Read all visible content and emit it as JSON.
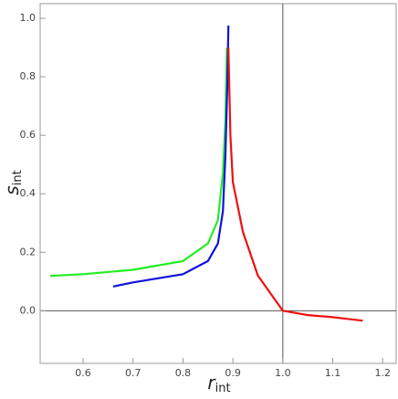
{
  "chart_data": {
    "type": "line",
    "xlabel": {
      "main": "r",
      "sub": "int"
    },
    "ylabel": {
      "main": "s",
      "sub": "int"
    },
    "xlim": [
      0.514,
      1.227
    ],
    "ylim": [
      -0.18,
      1.05
    ],
    "xticks": [
      0.6,
      0.7,
      0.8,
      0.9,
      {
        "value": 1.0,
        "label": "1.0"
      },
      1.1,
      1.2
    ],
    "yticks": [
      {
        "value": 0,
        "label": "0.0"
      },
      0.2,
      0.4,
      0.6,
      0.8,
      {
        "value": 1.0,
        "label": "1.0"
      }
    ],
    "series": [
      {
        "color": "#22ee22",
        "x": [
          0.534,
          0.6,
          0.7,
          0.8,
          0.85,
          0.87,
          0.88,
          0.885,
          0.888
        ],
        "values": [
          0.119,
          0.125,
          0.14,
          0.17,
          0.23,
          0.31,
          0.47,
          0.65,
          0.9
        ]
      },
      {
        "color": "#1111dd",
        "x": [
          0.66,
          0.7,
          0.8,
          0.85,
          0.87,
          0.88,
          0.885,
          0.889,
          0.891
        ],
        "values": [
          0.083,
          0.097,
          0.125,
          0.17,
          0.23,
          0.34,
          0.53,
          0.78,
          0.975
        ]
      },
      {
        "color": "#ee1111",
        "x": [
          0.891,
          0.895,
          0.9,
          0.92,
          0.95,
          1.0,
          1.05,
          1.1,
          1.16
        ],
        "values": [
          0.9,
          0.6,
          0.44,
          0.27,
          0.12,
          0,
          -0.015,
          -0.022,
          -0.034
        ]
      }
    ]
  }
}
